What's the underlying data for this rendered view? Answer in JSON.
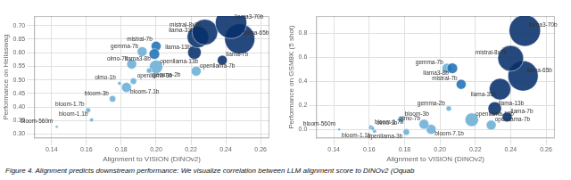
{
  "chart_data": [
    {
      "type": "bubble",
      "ylabel": "Performance on Hellaswag",
      "xlabel": "Alignment to VISION (DINOv2)",
      "xlim": [
        0.13,
        0.265
      ],
      "ylim": [
        0.285,
        0.735
      ],
      "xticks": [
        0.14,
        0.16,
        0.18,
        {
          "value": 0.2,
          "label": "0.20"
        },
        0.22,
        0.24,
        0.26
      ],
      "yticks": [
        {
          "value": 0.3,
          "label": "0.30"
        },
        0.35,
        {
          "value": 0.4,
          "label": "0.40"
        },
        0.45,
        {
          "value": 0.5,
          "label": "0.50"
        },
        0.55,
        {
          "value": 0.6,
          "label": "0.60"
        },
        0.65,
        {
          "value": 0.7,
          "label": "0.70"
        }
      ],
      "grid": true,
      "points": [
        {
          "name": "bloom-560m",
          "x": 0.143,
          "y": 0.327,
          "size": 0.56
        },
        {
          "name": "bloom-1.1b",
          "x": 0.163,
          "y": 0.352,
          "size": 1.1
        },
        {
          "name": "bloom-1.7b",
          "x": 0.161,
          "y": 0.388,
          "size": 1.7
        },
        {
          "name": "bloom-3b",
          "x": 0.175,
          "y": 0.43,
          "size": 3.0
        },
        {
          "name": "bloom-7.1b",
          "x": 0.183,
          "y": 0.472,
          "size": 7.1
        },
        {
          "name": "olmo-1b",
          "x": 0.179,
          "y": 0.487,
          "size": 1.0
        },
        {
          "name": "olmo-7b",
          "x": 0.186,
          "y": 0.558,
          "size": 7.0
        },
        {
          "name": "openllama-3b",
          "x": 0.187,
          "y": 0.495,
          "size": 3.0
        },
        {
          "name": "openllama-7b",
          "x": 0.223,
          "y": 0.532,
          "size": 7.0
        },
        {
          "name": "openllama-13b",
          "x": 0.2,
          "y": 0.548,
          "size": 13.0
        },
        {
          "name": "gemma-2b",
          "x": 0.196,
          "y": 0.534,
          "size": 2.0
        },
        {
          "name": "gemma-7b",
          "x": 0.192,
          "y": 0.604,
          "size": 7.0
        },
        {
          "name": "mistral-7b",
          "x": 0.2,
          "y": 0.624,
          "size": 7.0
        },
        {
          "name": "llama3-8b",
          "x": 0.199,
          "y": 0.595,
          "size": 8.0
        },
        {
          "name": "llama-7b",
          "x": 0.238,
          "y": 0.572,
          "size": 7.0
        },
        {
          "name": "llama-13b",
          "x": 0.222,
          "y": 0.601,
          "size": 13.0
        },
        {
          "name": "llama-33b",
          "x": 0.224,
          "y": 0.658,
          "size": 33.0
        },
        {
          "name": "llama-65b",
          "x": 0.248,
          "y": 0.651,
          "size": 65.0
        },
        {
          "name": "mistral-8x7b",
          "x": 0.228,
          "y": 0.676,
          "size": 47.0
        },
        {
          "name": "llama3-70b",
          "x": 0.243,
          "y": 0.71,
          "size": 70.0
        }
      ],
      "colors": [
        "#6baed6",
        "#6baed6",
        "#6baed6",
        "#6baed6",
        "#6baed6",
        "#6baed6",
        "#6baed6",
        "#6baed6",
        "#6baed6",
        "#6baed6",
        "#6baed6",
        "#6baed6",
        "#2171b5",
        "#2171b5",
        "#08306b",
        "#08306b",
        "#08306b",
        "#08306b",
        "#08306b",
        "#08306b"
      ]
    },
    {
      "type": "bubble",
      "ylabel": "Performance on GSM8K (5 shot)",
      "xlabel": "Alignment to VISION (DINOv2)",
      "xlim": [
        0.13,
        0.265
      ],
      "ylim": [
        -0.07,
        0.94
      ],
      "xticks": [
        0.14,
        0.16,
        0.18,
        {
          "value": 0.2,
          "label": "0.20"
        },
        0.22,
        0.24,
        0.26
      ],
      "yticks": [
        {
          "value": 0.0,
          "label": "0.0"
        },
        0.2,
        0.4,
        0.6,
        0.8
      ],
      "grid": true,
      "points": [
        {
          "name": "bloom-560m",
          "x": 0.143,
          "y": 0.002,
          "size": 0.56
        },
        {
          "name": "bloom-1.1b",
          "x": 0.163,
          "y": -0.012,
          "size": 1.1
        },
        {
          "name": "bloom-1.7b",
          "x": 0.161,
          "y": 0.018,
          "size": 1.7
        },
        {
          "name": "bloom-3b",
          "x": 0.178,
          "y": 0.085,
          "size": 3.0
        },
        {
          "name": "bloom-7.1b",
          "x": 0.195,
          "y": 0.003,
          "size": 7.1
        },
        {
          "name": "olmo-1b",
          "x": 0.162,
          "y": 0.01,
          "size": 1.0
        },
        {
          "name": "olmo-7b",
          "x": 0.191,
          "y": 0.045,
          "size": 7.0
        },
        {
          "name": "openllama-3b",
          "x": 0.181,
          "y": -0.02,
          "size": 3.0
        },
        {
          "name": "openllama-7b",
          "x": 0.229,
          "y": 0.038,
          "size": 7.0
        },
        {
          "name": "openllama-13b",
          "x": 0.218,
          "y": 0.082,
          "size": 13.0
        },
        {
          "name": "gemma-2b",
          "x": 0.205,
          "y": 0.175,
          "size": 2.0
        },
        {
          "name": "gemma-7b",
          "x": 0.204,
          "y": 0.508,
          "size": 7.0
        },
        {
          "name": "mistral-7b",
          "x": 0.212,
          "y": 0.375,
          "size": 7.0
        },
        {
          "name": "llama3-8b",
          "x": 0.207,
          "y": 0.508,
          "size": 8.0
        },
        {
          "name": "llama-7b",
          "x": 0.238,
          "y": 0.105,
          "size": 7.0
        },
        {
          "name": "llama-13b",
          "x": 0.231,
          "y": 0.175,
          "size": 13.0
        },
        {
          "name": "llama-33b",
          "x": 0.234,
          "y": 0.335,
          "size": 33.0
        },
        {
          "name": "llama-65b",
          "x": 0.247,
          "y": 0.445,
          "size": 65.0
        },
        {
          "name": "mistral-8x7b",
          "x": 0.24,
          "y": 0.59,
          "size": 47.0
        },
        {
          "name": "llama3-70b",
          "x": 0.248,
          "y": 0.82,
          "size": 70.0
        }
      ],
      "colors": [
        "#6baed6",
        "#6baed6",
        "#6baed6",
        "#6baed6",
        "#6baed6",
        "#6baed6",
        "#6baed6",
        "#6baed6",
        "#6baed6",
        "#6baed6",
        "#6baed6",
        "#6baed6",
        "#2171b5",
        "#2171b5",
        "#08306b",
        "#08306b",
        "#08306b",
        "#08306b",
        "#08306b",
        "#08306b"
      ]
    }
  ],
  "caption": "Figure 4. Alignment predicts downstream performance: We visualize correlation between LLM alignment score to DINOv2 (Oquab"
}
